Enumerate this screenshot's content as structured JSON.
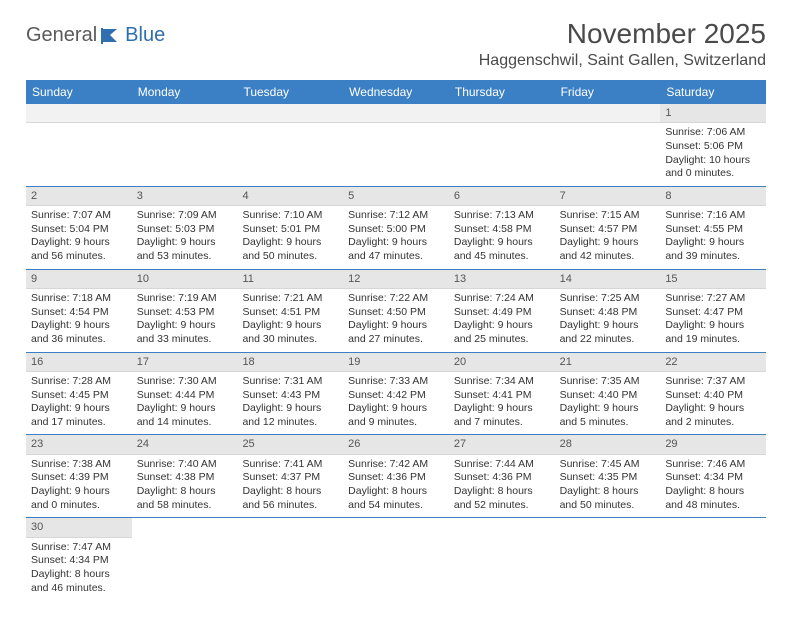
{
  "logo": {
    "text1": "General",
    "text2": "Blue"
  },
  "title": "November 2025",
  "location": "Haggenschwil, Saint Gallen, Switzerland",
  "dayNames": [
    "Sunday",
    "Monday",
    "Tuesday",
    "Wednesday",
    "Thursday",
    "Friday",
    "Saturday"
  ],
  "colors": {
    "headerBar": "#3b7fc4",
    "dayNumBg": "#e6e6e6",
    "text": "#333333",
    "title": "#4a4a4a",
    "logoGray": "#5a5a5a",
    "logoBlue": "#2f6fb0"
  },
  "weeks": [
    [
      null,
      null,
      null,
      null,
      null,
      null,
      {
        "n": "1",
        "sunrise": "7:06 AM",
        "sunset": "5:06 PM",
        "daylight": "10 hours and 0 minutes."
      }
    ],
    [
      {
        "n": "2",
        "sunrise": "7:07 AM",
        "sunset": "5:04 PM",
        "daylight": "9 hours and 56 minutes."
      },
      {
        "n": "3",
        "sunrise": "7:09 AM",
        "sunset": "5:03 PM",
        "daylight": "9 hours and 53 minutes."
      },
      {
        "n": "4",
        "sunrise": "7:10 AM",
        "sunset": "5:01 PM",
        "daylight": "9 hours and 50 minutes."
      },
      {
        "n": "5",
        "sunrise": "7:12 AM",
        "sunset": "5:00 PM",
        "daylight": "9 hours and 47 minutes."
      },
      {
        "n": "6",
        "sunrise": "7:13 AM",
        "sunset": "4:58 PM",
        "daylight": "9 hours and 45 minutes."
      },
      {
        "n": "7",
        "sunrise": "7:15 AM",
        "sunset": "4:57 PM",
        "daylight": "9 hours and 42 minutes."
      },
      {
        "n": "8",
        "sunrise": "7:16 AM",
        "sunset": "4:55 PM",
        "daylight": "9 hours and 39 minutes."
      }
    ],
    [
      {
        "n": "9",
        "sunrise": "7:18 AM",
        "sunset": "4:54 PM",
        "daylight": "9 hours and 36 minutes."
      },
      {
        "n": "10",
        "sunrise": "7:19 AM",
        "sunset": "4:53 PM",
        "daylight": "9 hours and 33 minutes."
      },
      {
        "n": "11",
        "sunrise": "7:21 AM",
        "sunset": "4:51 PM",
        "daylight": "9 hours and 30 minutes."
      },
      {
        "n": "12",
        "sunrise": "7:22 AM",
        "sunset": "4:50 PM",
        "daylight": "9 hours and 27 minutes."
      },
      {
        "n": "13",
        "sunrise": "7:24 AM",
        "sunset": "4:49 PM",
        "daylight": "9 hours and 25 minutes."
      },
      {
        "n": "14",
        "sunrise": "7:25 AM",
        "sunset": "4:48 PM",
        "daylight": "9 hours and 22 minutes."
      },
      {
        "n": "15",
        "sunrise": "7:27 AM",
        "sunset": "4:47 PM",
        "daylight": "9 hours and 19 minutes."
      }
    ],
    [
      {
        "n": "16",
        "sunrise": "7:28 AM",
        "sunset": "4:45 PM",
        "daylight": "9 hours and 17 minutes."
      },
      {
        "n": "17",
        "sunrise": "7:30 AM",
        "sunset": "4:44 PM",
        "daylight": "9 hours and 14 minutes."
      },
      {
        "n": "18",
        "sunrise": "7:31 AM",
        "sunset": "4:43 PM",
        "daylight": "9 hours and 12 minutes."
      },
      {
        "n": "19",
        "sunrise": "7:33 AM",
        "sunset": "4:42 PM",
        "daylight": "9 hours and 9 minutes."
      },
      {
        "n": "20",
        "sunrise": "7:34 AM",
        "sunset": "4:41 PM",
        "daylight": "9 hours and 7 minutes."
      },
      {
        "n": "21",
        "sunrise": "7:35 AM",
        "sunset": "4:40 PM",
        "daylight": "9 hours and 5 minutes."
      },
      {
        "n": "22",
        "sunrise": "7:37 AM",
        "sunset": "4:40 PM",
        "daylight": "9 hours and 2 minutes."
      }
    ],
    [
      {
        "n": "23",
        "sunrise": "7:38 AM",
        "sunset": "4:39 PM",
        "daylight": "9 hours and 0 minutes."
      },
      {
        "n": "24",
        "sunrise": "7:40 AM",
        "sunset": "4:38 PM",
        "daylight": "8 hours and 58 minutes."
      },
      {
        "n": "25",
        "sunrise": "7:41 AM",
        "sunset": "4:37 PM",
        "daylight": "8 hours and 56 minutes."
      },
      {
        "n": "26",
        "sunrise": "7:42 AM",
        "sunset": "4:36 PM",
        "daylight": "8 hours and 54 minutes."
      },
      {
        "n": "27",
        "sunrise": "7:44 AM",
        "sunset": "4:36 PM",
        "daylight": "8 hours and 52 minutes."
      },
      {
        "n": "28",
        "sunrise": "7:45 AM",
        "sunset": "4:35 PM",
        "daylight": "8 hours and 50 minutes."
      },
      {
        "n": "29",
        "sunrise": "7:46 AM",
        "sunset": "4:34 PM",
        "daylight": "8 hours and 48 minutes."
      }
    ],
    [
      {
        "n": "30",
        "sunrise": "7:47 AM",
        "sunset": "4:34 PM",
        "daylight": "8 hours and 46 minutes."
      },
      null,
      null,
      null,
      null,
      null,
      null
    ]
  ],
  "labels": {
    "sunrise": "Sunrise:",
    "sunset": "Sunset:",
    "daylight": "Daylight:"
  }
}
